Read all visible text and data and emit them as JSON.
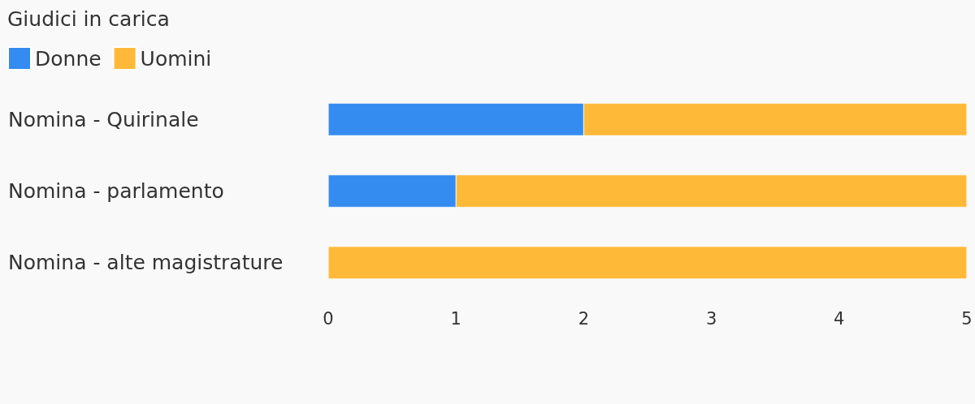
{
  "chart_data": {
    "type": "bar",
    "title": "Giudici in carica",
    "orientation": "horizontal",
    "stacked": true,
    "categories": [
      "Nomina - Quirinale",
      "Nomina - parlamento",
      "Nomina - alte magistrature"
    ],
    "series": [
      {
        "name": "Donne",
        "color": "#348cf0",
        "values": [
          2,
          1,
          0
        ]
      },
      {
        "name": "Uomini",
        "color": "#ffb938",
        "values": [
          3,
          4,
          5
        ]
      }
    ],
    "xlim": [
      0,
      5
    ],
    "xticks": [
      0,
      1,
      2,
      3,
      4,
      5
    ],
    "grid": false,
    "legend": "top left"
  }
}
